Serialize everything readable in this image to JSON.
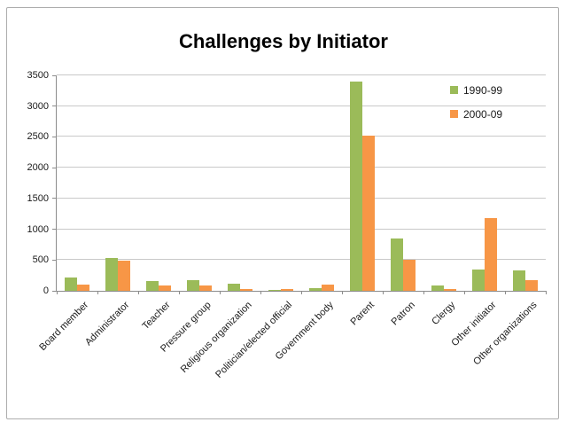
{
  "window": {
    "background": "#ffffff",
    "frame_border_color": "#adadad"
  },
  "colors": {
    "series_1990_99": "#9BBB59",
    "series_2000_09": "#F79646",
    "gridline": "#c9c9c9",
    "axis": "#8c8c8c",
    "text": "#1a1a1a"
  },
  "chart_data": {
    "type": "bar",
    "title": "Challenges by Initiator",
    "categories": [
      "Board member",
      "Administrator",
      "Teacher",
      "Pressure group",
      "Religious organization",
      "Politician/elected official",
      "Government body",
      "Parent",
      "Patron",
      "Clergy",
      "Other initiator",
      "Other organizations"
    ],
    "series": [
      {
        "name": "1990-99",
        "color": "#9BBB59",
        "values": [
          210,
          540,
          160,
          170,
          110,
          10,
          50,
          3400,
          850,
          80,
          340,
          330
        ]
      },
      {
        "name": "2000-09",
        "color": "#F79646",
        "values": [
          100,
          490,
          90,
          85,
          30,
          35,
          100,
          2520,
          510,
          25,
          1180,
          180
        ]
      }
    ],
    "xlabel": "",
    "ylabel": "",
    "ylim": [
      0,
      3500
    ],
    "yticks": [
      0,
      500,
      1000,
      1500,
      2000,
      2500,
      3000,
      3500
    ],
    "grid": true,
    "legend_position": "top-right",
    "x_label_rotation_deg": -45
  }
}
